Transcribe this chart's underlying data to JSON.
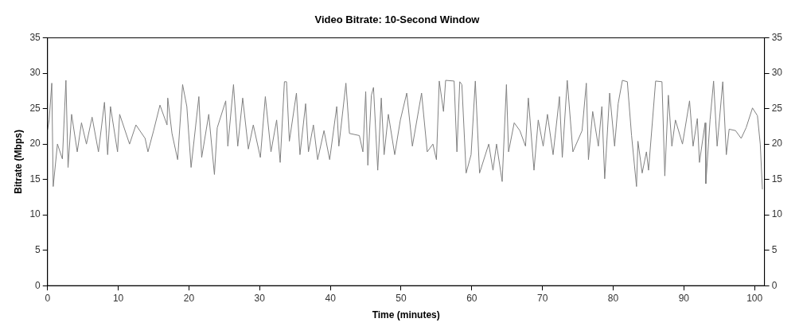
{
  "chart_data": {
    "type": "line",
    "title": "Video Bitrate: 10-Second Window",
    "xlabel": "Time (minutes)",
    "ylabel": "Bitrate (Mbps)",
    "xlim": [
      0,
      101.4
    ],
    "xticks": [
      0,
      10,
      20,
      30,
      40,
      50,
      60,
      70,
      80,
      90,
      100
    ],
    "ylim": [
      0,
      35
    ],
    "yticks": [
      0,
      5,
      10,
      15,
      20,
      25,
      30,
      35
    ],
    "y2lim": [
      0,
      35
    ],
    "y2ticks": [
      0,
      5,
      10,
      15,
      20,
      25,
      30,
      35
    ],
    "grid": false,
    "legend": false,
    "marker": "none",
    "series": [
      {
        "color": "#808080",
        "x": [
          0,
          0.23,
          0.6,
          0.8,
          1.4,
          2.1,
          2.6,
          2.9,
          3.4,
          4.2,
          4.8,
          5.5,
          6.3,
          7.2,
          8.05,
          8.5,
          8.9,
          9.9,
          10.2,
          11.6,
          12.5,
          13.8,
          14.2,
          15,
          15.9,
          16.9,
          17,
          17.6,
          18.4,
          19.1,
          19.7,
          20.3,
          21.4,
          21.8,
          22.8,
          23.6,
          24,
          25.2,
          25.5,
          26.3,
          26.9,
          27.6,
          28.4,
          29.1,
          30.1,
          30.8,
          31.6,
          32.4,
          32.9,
          33.5,
          33.8,
          34.2,
          35.2,
          35.7,
          36.5,
          36.9,
          37.6,
          38.2,
          39.1,
          39.9,
          40.9,
          41.2,
          42.2,
          42.7,
          44.1,
          44.6,
          45,
          45.3,
          45.8,
          46.1,
          46.7,
          47.2,
          47.6,
          48.2,
          49.1,
          49.9,
          50.8,
          51.6,
          52.9,
          53.7,
          54.5,
          55,
          55.4,
          56,
          56.3,
          57.5,
          57.9,
          58.3,
          58.6,
          59.2,
          59.9,
          60.5,
          61.1,
          62.4,
          63,
          63.5,
          64.3,
          64.9,
          65.2,
          66,
          66.8,
          67.6,
          68,
          68.8,
          69.4,
          70.1,
          70.7,
          71.5,
          72.4,
          72.8,
          73.5,
          74.3,
          75.6,
          76.2,
          76.5,
          77.1,
          77.9,
          78.4,
          78.8,
          79.5,
          80.2,
          80.7,
          81.3,
          82,
          82.6,
          83.3,
          83.5,
          84.1,
          84.7,
          85,
          86,
          86.9,
          87.3,
          87.8,
          88.3,
          88.8,
          89.8,
          90.8,
          91.3,
          91.9,
          92.2,
          93,
          93.1,
          93.7,
          94.2,
          94.7,
          95.5,
          96,
          96.4,
          97.3,
          98.1,
          98.8,
          99.7,
          100.4,
          100.8,
          101.1
        ],
        "values": [
          22,
          23.4,
          28.6,
          14,
          20,
          17.9,
          29,
          16.7,
          24.2,
          18.9,
          23,
          20,
          23.8,
          18.9,
          25.9,
          18.5,
          25.3,
          18.9,
          24.2,
          20,
          22.7,
          20.8,
          18.9,
          21.9,
          25.5,
          22.7,
          26.5,
          21.5,
          17.8,
          28.4,
          25.3,
          16.7,
          26.7,
          18.1,
          24.2,
          15.7,
          22.3,
          26.1,
          19.7,
          28.4,
          19.7,
          26.5,
          19.3,
          22.7,
          18.1,
          26.7,
          18.9,
          23.4,
          17.4,
          28.8,
          28.8,
          20.4,
          27.2,
          18.5,
          25.7,
          18.9,
          22.7,
          17.8,
          21.9,
          17.8,
          25.3,
          19.7,
          28.6,
          21.5,
          21.2,
          18.9,
          27.4,
          17,
          26.9,
          28,
          16.3,
          26.5,
          18.5,
          24.2,
          18.5,
          23.4,
          27.2,
          19.7,
          27.2,
          18.9,
          20,
          17.8,
          28.9,
          24.6,
          29,
          28.9,
          18.9,
          28.8,
          28.4,
          15.9,
          18.5,
          28.9,
          15.9,
          20,
          16.3,
          20,
          14.7,
          28.4,
          18.9,
          23,
          21.9,
          19.7,
          26.5,
          16.3,
          23.4,
          19.7,
          24.2,
          18.5,
          26.7,
          18.1,
          29,
          18.9,
          21.9,
          28.6,
          17.8,
          24.6,
          19.7,
          25.3,
          15.1,
          27.2,
          19.7,
          25.7,
          29,
          28.8,
          21.2,
          14,
          20.4,
          15.9,
          18.9,
          16.3,
          28.9,
          28.8,
          15.5,
          26.9,
          19.7,
          23.4,
          20,
          26.1,
          19.7,
          23.6,
          17.4,
          23,
          14.4,
          23.4,
          28.9,
          19.7,
          28.8,
          18.5,
          22.1,
          21.9,
          20.8,
          22.3,
          25.1,
          24,
          20,
          13.6
        ]
      }
    ]
  }
}
